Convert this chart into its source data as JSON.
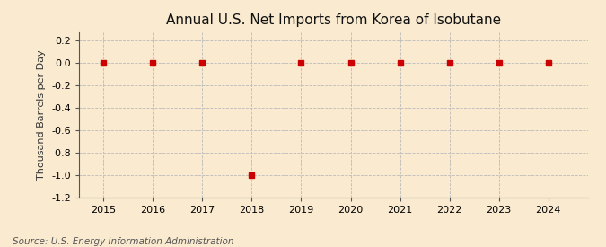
{
  "title": "Annual U.S. Net Imports from Korea of Isobutane",
  "ylabel": "Thousand Barrels per Day",
  "source_text": "Source: U.S. Energy Information Administration",
  "x_values": [
    2015,
    2016,
    2017,
    2018,
    2019,
    2020,
    2021,
    2022,
    2023,
    2024
  ],
  "y_values": [
    0,
    0,
    0,
    -1.0,
    0,
    0,
    0,
    0,
    0,
    0
  ],
  "xlim": [
    2014.5,
    2024.8
  ],
  "ylim": [
    -1.2,
    0.27
  ],
  "yticks": [
    0.2,
    0.0,
    -0.2,
    -0.4,
    -0.6,
    -0.8,
    -1.0,
    -1.2
  ],
  "xticks": [
    2015,
    2016,
    2017,
    2018,
    2019,
    2020,
    2021,
    2022,
    2023,
    2024
  ],
  "marker_color": "#cc0000",
  "marker": "s",
  "marker_size": 4,
  "grid_color": "#bbbbbb",
  "background_color": "#faebd0",
  "fig_background_color": "#faebd0",
  "title_fontsize": 11,
  "label_fontsize": 8,
  "tick_fontsize": 8,
  "source_fontsize": 7.5,
  "spine_color": "#555555"
}
